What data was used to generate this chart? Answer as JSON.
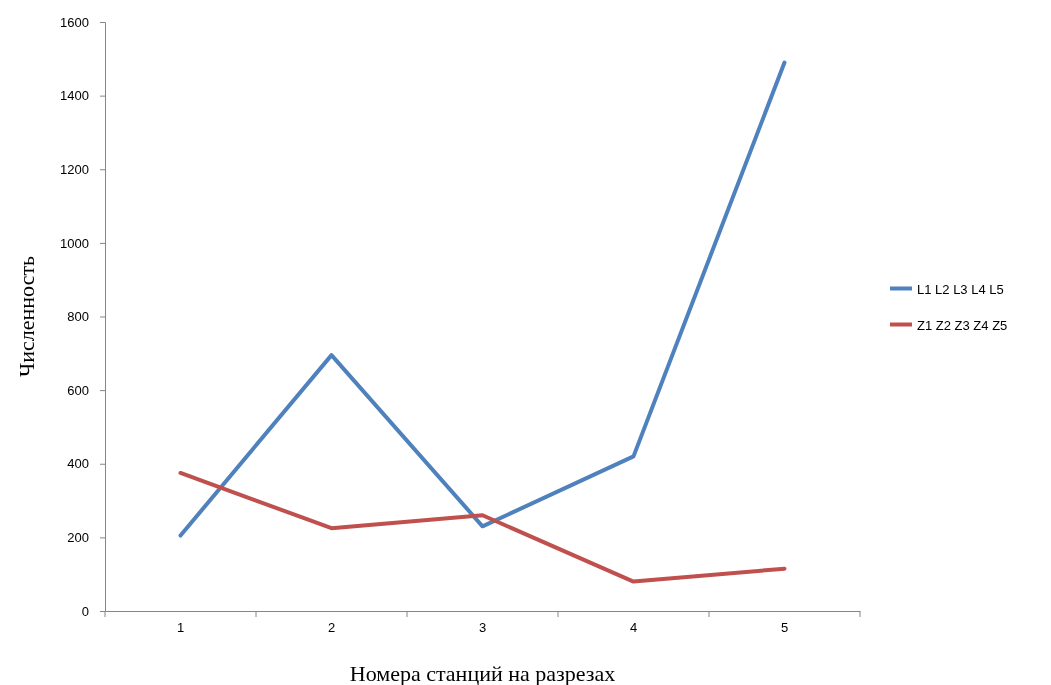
{
  "chart_data": {
    "type": "line",
    "xlabel": "Номера станций на разрезах",
    "ylabel": "Численность",
    "categories": [
      "1",
      "2",
      "3",
      "4",
      "5"
    ],
    "series": [
      {
        "name": "L1 L2 L3 L4 L5",
        "color": "#4f81bd",
        "values": [
          205,
          695,
          230,
          420,
          1490
        ]
      },
      {
        "name": "Z1 Z2 Z3 Z4 Z5",
        "color": "#c0504d",
        "values": [
          375,
          225,
          260,
          80,
          115
        ]
      }
    ],
    "ylim": [
      0,
      1600
    ],
    "yticks": [
      0,
      200,
      400,
      600,
      800,
      1000,
      1200,
      1400,
      1600
    ],
    "grid": false,
    "legend": "right",
    "marker": "none",
    "line_style": "solid"
  }
}
